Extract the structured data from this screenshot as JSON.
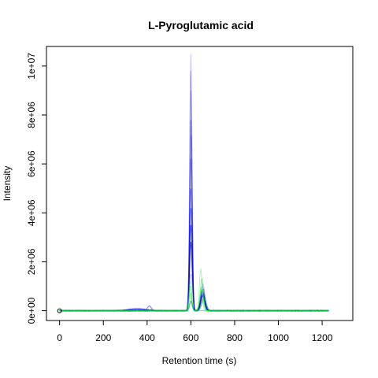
{
  "chart_data": {
    "type": "line",
    "title": "L-Pyroglutamic acid",
    "xlabel": "Retention time (s)",
    "ylabel": "Intensity",
    "xlim": [
      -60,
      1340
    ],
    "ylim": [
      -400000,
      10800000
    ],
    "x_ticks": [
      0,
      200,
      400,
      600,
      800,
      1000,
      1200
    ],
    "x_tick_labels": [
      "0",
      "200",
      "400",
      "600",
      "800",
      "1000",
      "1200"
    ],
    "y_ticks": [
      0,
      2000000,
      4000000,
      6000000,
      8000000,
      10000000
    ],
    "y_tick_labels": [
      "0e+00",
      "2e+06",
      "4e+06",
      "6e+06",
      "8e+06",
      "1e+07"
    ],
    "grid": false,
    "legend": "none",
    "marker_point": {
      "x": 0,
      "y": 0
    },
    "series": [
      {
        "color": "#0000ff",
        "alpha": 0.2,
        "width": 1,
        "peaks": [
          [
            600,
            10500000,
            5
          ],
          [
            655,
            1100000,
            9
          ],
          [
            360,
            90000,
            40
          ]
        ]
      },
      {
        "color": "#0000ff",
        "alpha": 0.25,
        "width": 1,
        "peaks": [
          [
            599,
            9800000,
            5
          ],
          [
            653,
            1000000,
            9
          ],
          [
            350,
            80000,
            40
          ]
        ]
      },
      {
        "color": "#0000ff",
        "alpha": 0.25,
        "width": 1,
        "peaks": [
          [
            601,
            9000000,
            5
          ],
          [
            656,
            900000,
            9
          ],
          [
            340,
            70000,
            40
          ]
        ]
      },
      {
        "color": "#0000ff",
        "alpha": 0.3,
        "width": 1,
        "peaks": [
          [
            600,
            7800000,
            5
          ],
          [
            654,
            850000,
            9
          ]
        ]
      },
      {
        "color": "#0000ff",
        "alpha": 0.3,
        "width": 1,
        "peaks": [
          [
            602,
            7200000,
            5
          ],
          [
            652,
            800000,
            9
          ]
        ]
      },
      {
        "color": "#0000ff",
        "alpha": 0.35,
        "width": 1,
        "peaks": [
          [
            600,
            6200000,
            6
          ],
          [
            655,
            750000,
            9
          ],
          [
            410,
            200000,
            8
          ]
        ]
      },
      {
        "color": "#0000ff",
        "alpha": 0.4,
        "width": 1,
        "peaks": [
          [
            599,
            5000000,
            6
          ],
          [
            654,
            700000,
            9
          ]
        ]
      },
      {
        "color": "#0000ff",
        "alpha": 0.45,
        "width": 1,
        "peaks": [
          [
            601,
            4200000,
            6
          ],
          [
            656,
            680000,
            9
          ]
        ]
      },
      {
        "color": "#0000cc",
        "alpha": 0.55,
        "width": 1.2,
        "peaks": [
          [
            600,
            3500000,
            6
          ],
          [
            655,
            650000,
            9
          ],
          [
            360,
            60000,
            40
          ]
        ]
      },
      {
        "color": "#000099",
        "alpha": 0.6,
        "width": 1.2,
        "peaks": [
          [
            600,
            2800000,
            6
          ],
          [
            653,
            600000,
            9
          ]
        ]
      },
      {
        "color": "#4d7cb5",
        "alpha": 0.4,
        "width": 1,
        "peaks": [
          [
            411,
            180000,
            10
          ],
          [
            600,
            1500000,
            7
          ]
        ]
      },
      {
        "color": "#00cc44",
        "alpha": 0.3,
        "width": 1,
        "peaks": [
          [
            645,
            1700000,
            6
          ],
          [
            598,
            1200000,
            6
          ]
        ]
      },
      {
        "color": "#00cc00",
        "alpha": 0.4,
        "width": 1,
        "peaks": [
          [
            597,
            1000000,
            6
          ],
          [
            650,
            1300000,
            7
          ]
        ]
      },
      {
        "color": "#33ff33",
        "alpha": 0.6,
        "width": 1.2,
        "peaks": [
          [
            598,
            700000,
            6
          ],
          [
            648,
            900000,
            8
          ]
        ]
      },
      {
        "color": "#00aa55",
        "alpha": 0.7,
        "width": 1.2,
        "peaks": [
          [
            660,
            500000,
            10
          ],
          [
            600,
            400000,
            6
          ]
        ]
      }
    ]
  }
}
